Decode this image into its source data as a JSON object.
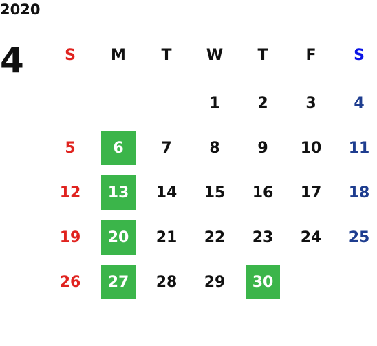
{
  "year": "2020",
  "month": "4",
  "weekdays": [
    "S",
    "M",
    "T",
    "W",
    "T",
    "F",
    "S"
  ],
  "colors": {
    "text": "#111111",
    "sunday": "#e0231f",
    "saturday_header": "#0a14e6",
    "saturday": "#1e3d8f",
    "highlight": "#3bb54a",
    "highlight_text": "#ffffff"
  },
  "weeks": [
    [
      null,
      null,
      null,
      {
        "day": "1"
      },
      {
        "day": "2"
      },
      {
        "day": "3"
      },
      {
        "day": "4"
      }
    ],
    [
      {
        "day": "5"
      },
      {
        "day": "6",
        "highlight": true
      },
      {
        "day": "7"
      },
      {
        "day": "8"
      },
      {
        "day": "9"
      },
      {
        "day": "10"
      },
      {
        "day": "11"
      }
    ],
    [
      {
        "day": "12"
      },
      {
        "day": "13",
        "highlight": true
      },
      {
        "day": "14"
      },
      {
        "day": "15"
      },
      {
        "day": "16"
      },
      {
        "day": "17"
      },
      {
        "day": "18"
      }
    ],
    [
      {
        "day": "19"
      },
      {
        "day": "20",
        "highlight": true
      },
      {
        "day": "21"
      },
      {
        "day": "22"
      },
      {
        "day": "23"
      },
      {
        "day": "24"
      },
      {
        "day": "25"
      }
    ],
    [
      {
        "day": "26"
      },
      {
        "day": "27",
        "highlight": true
      },
      {
        "day": "28"
      },
      {
        "day": "29"
      },
      {
        "day": "30",
        "highlight": true
      },
      null,
      null
    ]
  ]
}
